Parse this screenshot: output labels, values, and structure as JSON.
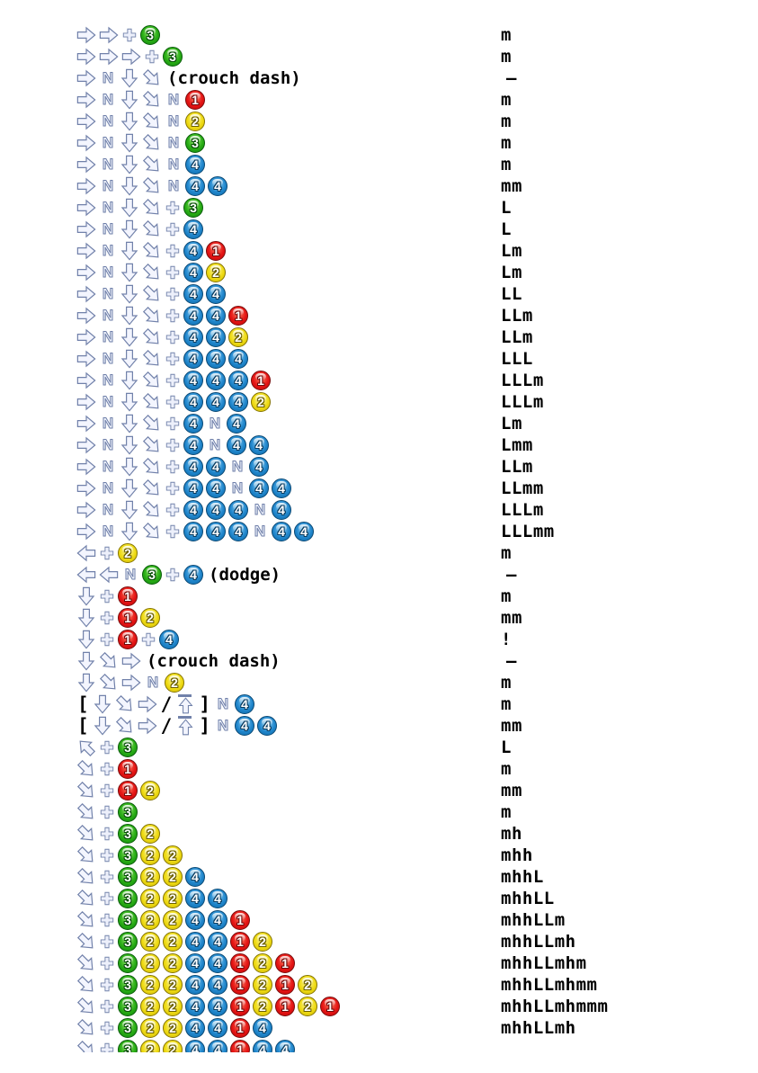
{
  "palette": {
    "background": "#ffffff",
    "text": "#000000",
    "arrow_fill": "#f3f5fe",
    "arrow_stroke": "#7181aa",
    "button1_red": "#e41414",
    "button2_yellow": "#eeda12",
    "button3_green": "#28ac14",
    "button4_blue": "#2086cc"
  },
  "icon_names": {
    "f": "forward-arrow-icon",
    "b": "back-arrow-icon",
    "d": "down-arrow-icon",
    "df": "down-forward-arrow-icon",
    "ub": "up-back-arrow-icon",
    "ubar": "up-arrow-hold-icon",
    "N": "neutral-icon",
    "plus": "plus-icon",
    "btn1": "button-1-icon",
    "btn2": "button-2-icon",
    "btn3": "button-3-icon",
    "btn4": "button-4-icon"
  },
  "rows": [
    {
      "inputs": [
        "f",
        "f",
        "+",
        "3"
      ],
      "level": "m"
    },
    {
      "inputs": [
        "f",
        "f",
        "f",
        "+",
        "3"
      ],
      "level": "m"
    },
    {
      "inputs": [
        "f",
        "N",
        "d",
        "df",
        "(crouch dash)"
      ],
      "level": "–"
    },
    {
      "inputs": [
        "f",
        "N",
        "d",
        "df",
        "N",
        "1"
      ],
      "level": "m"
    },
    {
      "inputs": [
        "f",
        "N",
        "d",
        "df",
        "N",
        "2"
      ],
      "level": "m"
    },
    {
      "inputs": [
        "f",
        "N",
        "d",
        "df",
        "N",
        "3"
      ],
      "level": "m"
    },
    {
      "inputs": [
        "f",
        "N",
        "d",
        "df",
        "N",
        "4"
      ],
      "level": "m"
    },
    {
      "inputs": [
        "f",
        "N",
        "d",
        "df",
        "N",
        "4",
        "4"
      ],
      "level": "mm"
    },
    {
      "inputs": [
        "f",
        "N",
        "d",
        "df",
        "+",
        "3"
      ],
      "level": "L"
    },
    {
      "inputs": [
        "f",
        "N",
        "d",
        "df",
        "+",
        "4"
      ],
      "level": "L"
    },
    {
      "inputs": [
        "f",
        "N",
        "d",
        "df",
        "+",
        "4",
        "1"
      ],
      "level": "Lm"
    },
    {
      "inputs": [
        "f",
        "N",
        "d",
        "df",
        "+",
        "4",
        "2"
      ],
      "level": "Lm"
    },
    {
      "inputs": [
        "f",
        "N",
        "d",
        "df",
        "+",
        "4",
        "4"
      ],
      "level": "LL"
    },
    {
      "inputs": [
        "f",
        "N",
        "d",
        "df",
        "+",
        "4",
        "4",
        "1"
      ],
      "level": "LLm"
    },
    {
      "inputs": [
        "f",
        "N",
        "d",
        "df",
        "+",
        "4",
        "4",
        "2"
      ],
      "level": "LLm"
    },
    {
      "inputs": [
        "f",
        "N",
        "d",
        "df",
        "+",
        "4",
        "4",
        "4"
      ],
      "level": "LLL"
    },
    {
      "inputs": [
        "f",
        "N",
        "d",
        "df",
        "+",
        "4",
        "4",
        "4",
        "1"
      ],
      "level": "LLLm"
    },
    {
      "inputs": [
        "f",
        "N",
        "d",
        "df",
        "+",
        "4",
        "4",
        "4",
        "2"
      ],
      "level": "LLLm"
    },
    {
      "inputs": [
        "f",
        "N",
        "d",
        "df",
        "+",
        "4",
        "N",
        "4"
      ],
      "level": "Lm"
    },
    {
      "inputs": [
        "f",
        "N",
        "d",
        "df",
        "+",
        "4",
        "N",
        "4",
        "4"
      ],
      "level": "Lmm"
    },
    {
      "inputs": [
        "f",
        "N",
        "d",
        "df",
        "+",
        "4",
        "4",
        "N",
        "4"
      ],
      "level": "LLm"
    },
    {
      "inputs": [
        "f",
        "N",
        "d",
        "df",
        "+",
        "4",
        "4",
        "N",
        "4",
        "4"
      ],
      "level": "LLmm"
    },
    {
      "inputs": [
        "f",
        "N",
        "d",
        "df",
        "+",
        "4",
        "4",
        "4",
        "N",
        "4"
      ],
      "level": "LLLm"
    },
    {
      "inputs": [
        "f",
        "N",
        "d",
        "df",
        "+",
        "4",
        "4",
        "4",
        "N",
        "4",
        "4"
      ],
      "level": "LLLmm"
    },
    {
      "inputs": [
        "b",
        "+",
        "2"
      ],
      "level": "m"
    },
    {
      "inputs": [
        "b",
        "b",
        "N",
        "3",
        "+",
        "4",
        "(dodge)"
      ],
      "level": "–"
    },
    {
      "inputs": [
        "d",
        "+",
        "1"
      ],
      "level": "m"
    },
    {
      "inputs": [
        "d",
        "+",
        "1",
        "2"
      ],
      "level": "mm"
    },
    {
      "inputs": [
        "d",
        "+",
        "1",
        "+",
        "4"
      ],
      "level": "!"
    },
    {
      "inputs": [
        "d",
        "df",
        "f",
        "(crouch dash)"
      ],
      "level": "–"
    },
    {
      "inputs": [
        "d",
        "df",
        "f",
        "N",
        "2"
      ],
      "level": "m"
    },
    {
      "inputs": [
        "[",
        "d",
        "df",
        "f",
        "/",
        "ubar",
        "]",
        "N",
        "4"
      ],
      "level": "m"
    },
    {
      "inputs": [
        "[",
        "d",
        "df",
        "f",
        "/",
        "ubar",
        "]",
        "N",
        "4",
        "4"
      ],
      "level": "mm"
    },
    {
      "inputs": [
        "ub",
        "+",
        "3"
      ],
      "level": "L"
    },
    {
      "inputs": [
        "df",
        "+",
        "1"
      ],
      "level": "m"
    },
    {
      "inputs": [
        "df",
        "+",
        "1",
        "2"
      ],
      "level": "mm"
    },
    {
      "inputs": [
        "df",
        "+",
        "3"
      ],
      "level": "m"
    },
    {
      "inputs": [
        "df",
        "+",
        "3",
        "2"
      ],
      "level": "mh"
    },
    {
      "inputs": [
        "df",
        "+",
        "3",
        "2",
        "2"
      ],
      "level": "mhh"
    },
    {
      "inputs": [
        "df",
        "+",
        "3",
        "2",
        "2",
        "4"
      ],
      "level": "mhhL"
    },
    {
      "inputs": [
        "df",
        "+",
        "3",
        "2",
        "2",
        "4",
        "4"
      ],
      "level": "mhhLL"
    },
    {
      "inputs": [
        "df",
        "+",
        "3",
        "2",
        "2",
        "4",
        "4",
        "1"
      ],
      "level": "mhhLLm"
    },
    {
      "inputs": [
        "df",
        "+",
        "3",
        "2",
        "2",
        "4",
        "4",
        "1",
        "2"
      ],
      "level": "mhhLLmh"
    },
    {
      "inputs": [
        "df",
        "+",
        "3",
        "2",
        "2",
        "4",
        "4",
        "1",
        "2",
        "1"
      ],
      "level": "mhhLLmhm"
    },
    {
      "inputs": [
        "df",
        "+",
        "3",
        "2",
        "2",
        "4",
        "4",
        "1",
        "2",
        "1",
        "2"
      ],
      "level": "mhhLLmhmm"
    },
    {
      "inputs": [
        "df",
        "+",
        "3",
        "2",
        "2",
        "4",
        "4",
        "1",
        "2",
        "1",
        "2",
        "1"
      ],
      "level": "mhhLLmhmmm"
    },
    {
      "inputs": [
        "df",
        "+",
        "3",
        "2",
        "2",
        "4",
        "4",
        "1",
        "4"
      ],
      "level": "mhhLLmh"
    },
    {
      "inputs": [
        "df",
        "+",
        "3",
        "2",
        "2",
        "4",
        "4",
        "1",
        "4",
        "4"
      ],
      "level": ""
    }
  ]
}
